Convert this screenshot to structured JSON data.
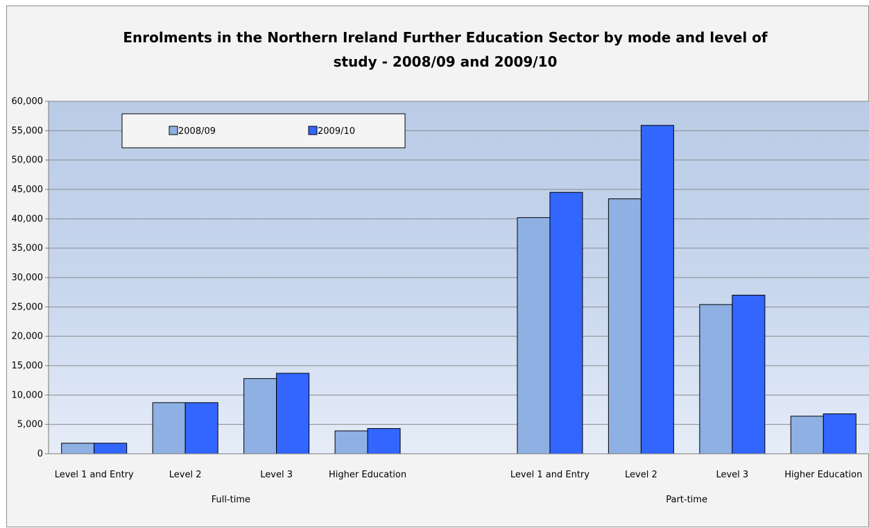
{
  "chart_data": {
    "type": "bar",
    "title_lines": [
      "Enrolments in the Northern Ireland Further Education Sector by mode and level of",
      "study - 2008/09 and 2009/10"
    ],
    "groups": [
      {
        "label": "Full-time",
        "categories": [
          "Level 1 and Entry",
          "Level 2",
          "Level 3",
          "Higher Education"
        ]
      },
      {
        "label": "Part-time",
        "categories": [
          "Level 1 and Entry",
          "Level 2",
          "Level 3",
          "Higher Education"
        ]
      }
    ],
    "series": [
      {
        "name": "2008/09",
        "color": "#8eb0e3",
        "values": [
          1800,
          8700,
          12800,
          3900,
          40200,
          43400,
          25400,
          6400
        ]
      },
      {
        "name": "2009/10",
        "color": "#3366ff",
        "values": [
          1800,
          8700,
          13700,
          4300,
          44500,
          55900,
          27000,
          6800
        ]
      }
    ],
    "ylim": [
      0,
      60000
    ],
    "yticks": [
      "0",
      "5,000",
      "10,000",
      "15,000",
      "20,000",
      "25,000",
      "30,000",
      "35,000",
      "40,000",
      "45,000",
      "50,000",
      "55,000",
      "60,000"
    ],
    "grid": true,
    "legend_position": "top-left"
  }
}
